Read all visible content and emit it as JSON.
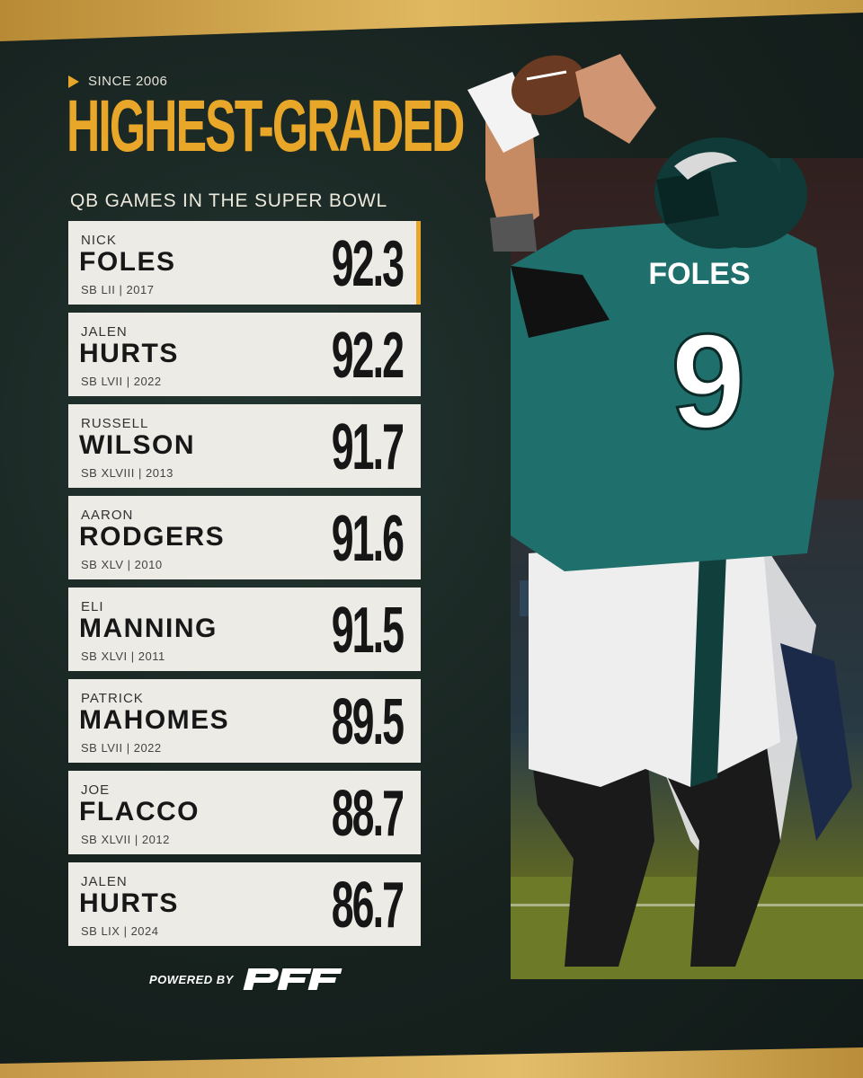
{
  "header": {
    "kicker": "SINCE 2006",
    "headline": "HIGHEST-GRADED",
    "subheadline": "QB GAMES IN THE SUPER BOWL"
  },
  "players": [
    {
      "first": "NICK",
      "last": "FOLES",
      "game": "SB LII | 2017",
      "grade": "92.3"
    },
    {
      "first": "JALEN",
      "last": "HURTS",
      "game": "SB LVII | 2022",
      "grade": "92.2"
    },
    {
      "first": "RUSSELL",
      "last": "WILSON",
      "game": "SB XLVIII | 2013",
      "grade": "91.7"
    },
    {
      "first": "AARON",
      "last": "RODGERS",
      "game": "SB XLV | 2010",
      "grade": "91.6"
    },
    {
      "first": "ELI",
      "last": "MANNING",
      "game": "SB XLVI | 2011",
      "grade": "91.5"
    },
    {
      "first": "PATRICK",
      "last": "MAHOMES",
      "game": "SB LVII | 2022",
      "grade": "89.5"
    },
    {
      "first": "JOE",
      "last": "FLACCO",
      "game": "SB XLVII | 2012",
      "grade": "88.7"
    },
    {
      "first": "JALEN",
      "last": "HURTS",
      "game": "SB LIX | 2024",
      "grade": "86.7"
    }
  ],
  "footer": {
    "powered_label": "POWERED BY",
    "logo_text": "PFF"
  },
  "photo": {
    "jersey_name": "FOLES",
    "jersey_number": "9"
  },
  "colors": {
    "accent": "#e9a72a",
    "panel": "#17221f",
    "card": "#ecebe6",
    "jersey": "#1f6f6c"
  }
}
